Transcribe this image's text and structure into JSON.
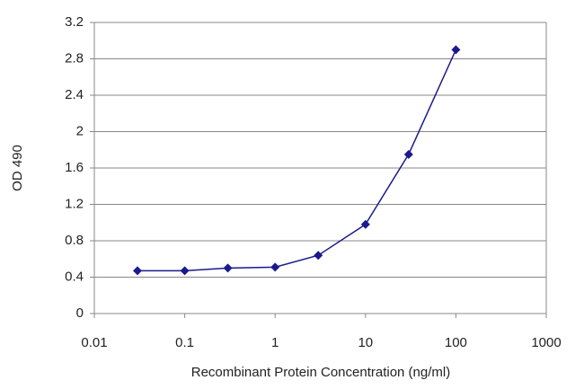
{
  "chart_data": {
    "type": "line",
    "x_label": "Recombinant Protein Concentration (ng/ml)",
    "y_label": "OD 490",
    "x": [
      0.03,
      0.1,
      0.3,
      1,
      3,
      10,
      30,
      100
    ],
    "series": [
      {
        "color": "#1a1a8c",
        "values": [
          0.47,
          0.47,
          0.5,
          0.51,
          0.64,
          0.98,
          1.75,
          2.9
        ]
      }
    ],
    "x_log": true,
    "xlim": [
      0.01,
      1000
    ],
    "xticks": [
      0.01,
      0.1,
      1,
      10,
      100,
      1000
    ],
    "ylim": [
      0,
      3.2
    ],
    "yticks": [
      0,
      0.4,
      0.8,
      1.2,
      1.6,
      2,
      2.4,
      2.8,
      3.2
    ],
    "grid": true
  }
}
